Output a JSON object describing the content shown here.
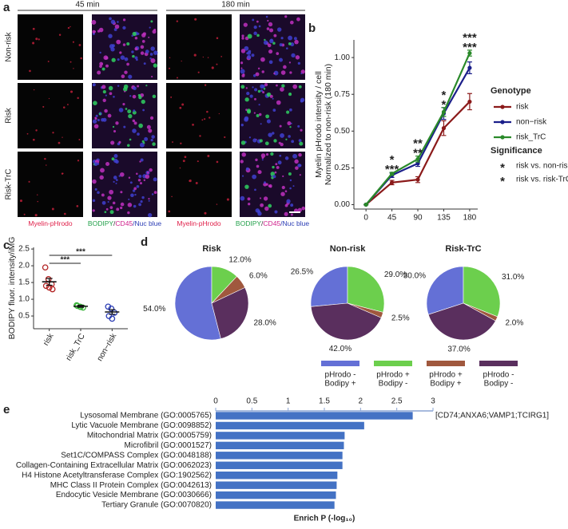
{
  "panel_a": {
    "label": "a",
    "columns": [
      "45 min",
      "180 min"
    ],
    "rows": [
      "Non-risk",
      "Risk",
      "Risk-TrC"
    ],
    "channels": [
      {
        "parts": [
          {
            "text": "Myelin-pHrodo",
            "color": "#e0204a"
          }
        ]
      },
      {
        "parts": [
          {
            "text": "BODIPY",
            "color": "#22a04a"
          },
          {
            "text": "/",
            "color": "#333333"
          },
          {
            "text": "CD45",
            "color": "#d0208c"
          },
          {
            "text": "/Nuc blue",
            "color": "#2a3cb4"
          }
        ]
      }
    ]
  },
  "chart_data": [
    {
      "panel": "b",
      "type": "line",
      "y_label": [
        "Myelin pHrodo intensity / cell",
        "Normalized to non-risk (180 min)"
      ],
      "x": [
        0,
        45,
        90,
        135,
        180
      ],
      "xlim": [
        -21,
        194
      ],
      "xticks": [
        0,
        45,
        90,
        135,
        180
      ],
      "ylim": [
        -0.03,
        1.12
      ],
      "yticks": [
        {
          "value": 0,
          "label": "0.00"
        },
        {
          "value": 0.25,
          "label": "0.25"
        },
        {
          "value": 0.5,
          "label": "0.50"
        },
        {
          "value": 0.75,
          "label": "0.75"
        },
        {
          "value": 1,
          "label": "1.00"
        }
      ],
      "legend_title": "Genotype",
      "series": [
        {
          "name": "risk",
          "color": "#8b1a1a",
          "values": [
            0,
            0.15,
            0.17,
            0.52,
            0.7
          ],
          "errors": [
            0,
            0.015,
            0.02,
            0.05,
            0.055
          ]
        },
        {
          "name": "non−risk",
          "color": "#1b1f8a",
          "values": [
            0,
            0.2,
            0.28,
            0.62,
            0.93
          ],
          "errors": [
            0,
            0.015,
            0.02,
            0.04,
            0.04
          ]
        },
        {
          "name": "risk_TrC",
          "color": "#2a8a2a",
          "values": [
            0,
            0.21,
            0.31,
            0.63,
            1.03
          ],
          "errors": [
            0,
            0.01,
            0.02,
            0.03,
            0.02
          ]
        }
      ],
      "significance_title": "Significance",
      "significance": [
        {
          "name": "risk vs. non-risk",
          "color": "#e0208c",
          "marker": "*"
        },
        {
          "name": "risk vs. risk-TrC",
          "color": "#1fb4e0",
          "marker": "*"
        }
      ],
      "annotations": [
        {
          "x": 45,
          "group": 0,
          "label": "*"
        },
        {
          "x": 45,
          "group": 1,
          "label": "***"
        },
        {
          "x": 90,
          "group": 0,
          "label": "**"
        },
        {
          "x": 90,
          "group": 1,
          "label": "**"
        },
        {
          "x": 135,
          "group": 0,
          "label": "*"
        },
        {
          "x": 135,
          "group": 1,
          "label": "*"
        },
        {
          "x": 180,
          "group": 0,
          "label": "***"
        },
        {
          "x": 180,
          "group": 1,
          "label": "***"
        }
      ]
    },
    {
      "panel": "c",
      "type": "dot",
      "y_label": "BODIPY fluor. intensity/iMG",
      "categories": [
        "risk",
        "risk_TrC",
        "non−risk"
      ],
      "colors": [
        "#b22222",
        "#3cb43c",
        "#2a3cb4"
      ],
      "points": [
        [
          1.95,
          1.6,
          1.45,
          1.4,
          1.35,
          1.3
        ],
        [
          0.82,
          0.78,
          0.75,
          0.8,
          0.77
        ],
        [
          0.78,
          0.72,
          0.6,
          0.5,
          0.42
        ]
      ],
      "values": [
        1.52,
        0.79,
        0.62
      ],
      "errors": [
        0.1,
        0.03,
        0.07
      ],
      "ylim": [
        0.12,
        2.55
      ],
      "yticks": [
        0.5,
        {
          "value": 1,
          "label": "1.0"
        },
        1.5,
        {
          "value": 2,
          "label": "2.0"
        },
        2.5
      ],
      "comparisons": [
        {
          "from": 0,
          "to": 1,
          "label": "***"
        },
        {
          "from": 0,
          "to": 2,
          "label": "***"
        }
      ]
    },
    {
      "panel": "d",
      "type": "pie",
      "categories": [
        [
          "pHrodo -",
          "Bodipy +"
        ],
        [
          "pHrodo +",
          "Bodipy -"
        ],
        [
          "pHrodo +",
          "Bodipy +"
        ],
        [
          "pHrodo -",
          "Bodipy -"
        ]
      ],
      "colors": [
        "#6470d6",
        "#6ccf4d",
        "#a0583e",
        "#5a2f5e"
      ],
      "pies": [
        {
          "title": "Risk",
          "values": [
            54,
            12,
            6,
            28
          ],
          "value_labels": [
            "54.0%",
            "12.0%",
            "6.0%",
            "28.0%"
          ]
        },
        {
          "title": "Non-risk",
          "values": [
            26.5,
            29,
            2.5,
            42
          ],
          "value_labels": [
            "26.5%",
            "29.0%",
            "2.5%",
            "42.0%"
          ]
        },
        {
          "title": "Risk-TrC",
          "values": [
            30,
            31,
            2,
            37
          ],
          "value_labels": [
            "30.0%",
            "31.0%",
            "2.0%",
            "37.0%"
          ]
        }
      ]
    },
    {
      "panel": "e",
      "type": "bar",
      "orientation": "horizontal",
      "categories": [
        "Lysosomal Membrane (GO:0005765)",
        "Lytic Vacuole Membrane (GO:0098852)",
        "Mitochondrial Matrix (GO:0005759)",
        "Microfibril (GO:0001527)",
        "Set1C/COMPASS Complex (GO:0048188)",
        "Collagen-Containing Extracellular Matrix (GO:0062023)",
        "H4 Histone Acetyltransferase Complex (GO:1902562)",
        "MHC Class II Protein Complex (GO:0042613)",
        "Endocytic Vesicle Membrane (GO:0030666)",
        "Tertiary Granule (GO:0070820)"
      ],
      "values": [
        2.72,
        2.05,
        1.78,
        1.77,
        1.75,
        1.75,
        1.68,
        1.67,
        1.66,
        1.64
      ],
      "color": "#4472c4",
      "xlim": [
        0,
        3
      ],
      "xticks": [
        0,
        0.5,
        1,
        1.5,
        2,
        2.5,
        3
      ],
      "x_label": "Enrich P (-log₁₀)",
      "annotations": [
        {
          "category": 0,
          "label": "[CD74;ANXA6;VAMP1;TCIRG1]"
        }
      ]
    }
  ]
}
